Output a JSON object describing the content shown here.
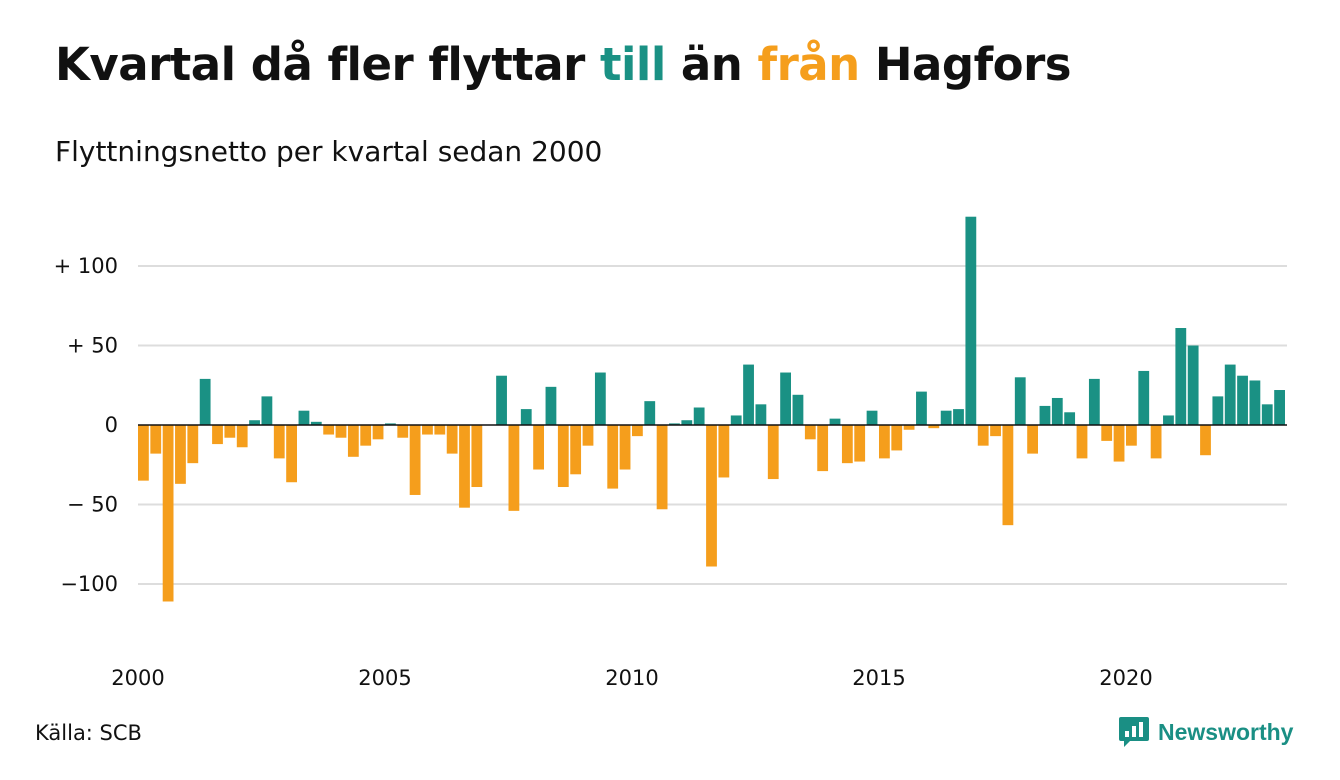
{
  "title": {
    "part1": "Kvartal då fler flyttar ",
    "till": "till",
    "part2": " än ",
    "fran": "från",
    "part3": " Hagfors"
  },
  "subtitle": "Flyttningsnetto per kvartal sedan 2000",
  "source": "Källa: SCB",
  "brand": "Newsworthy",
  "colors": {
    "positive": "#1a9184",
    "negative": "#f59e1c",
    "grid": "#dddddd",
    "zero": "#111111"
  },
  "chart_data": {
    "type": "bar",
    "title": "Kvartal då fler flyttar till än från Hagfors",
    "subtitle": "Flyttningsnetto per kvartal sedan 2000",
    "xlabel": "",
    "ylabel": "",
    "ylim": [
      -140,
      135
    ],
    "x_start": "2000 Q1",
    "x_ticks": [
      "2000",
      "2005",
      "2010",
      "2015",
      "2020"
    ],
    "y_ticks": [
      {
        "value": 100,
        "label": "+ 100"
      },
      {
        "value": 50,
        "label": "+  50"
      },
      {
        "value": 0,
        "label": "0"
      },
      {
        "value": -50,
        "label": "− 50"
      },
      {
        "value": -100,
        "label": "−100"
      }
    ],
    "values": [
      -35,
      -18,
      -111,
      -37,
      -24,
      29,
      -12,
      -8,
      -14,
      3,
      18,
      -21,
      -36,
      9,
      2,
      -6,
      -8,
      -20,
      -13,
      -9,
      1,
      -8,
      -44,
      -6,
      -6,
      -18,
      -52,
      -39,
      0,
      31,
      -54,
      10,
      -28,
      24,
      -39,
      -31,
      -13,
      33,
      -40,
      -28,
      -7,
      15,
      -53,
      1,
      3,
      11,
      -89,
      -33,
      6,
      38,
      13,
      -34,
      33,
      19,
      -9,
      -29,
      4,
      -24,
      -23,
      9,
      -21,
      -16,
      -3,
      21,
      -2,
      9,
      10,
      131,
      -13,
      -7,
      -63,
      30,
      -18,
      12,
      17,
      8,
      -21,
      29,
      -10,
      -23,
      -13,
      34,
      -21,
      6,
      61,
      50,
      -19,
      18,
      38,
      31,
      28,
      13,
      22
    ]
  }
}
